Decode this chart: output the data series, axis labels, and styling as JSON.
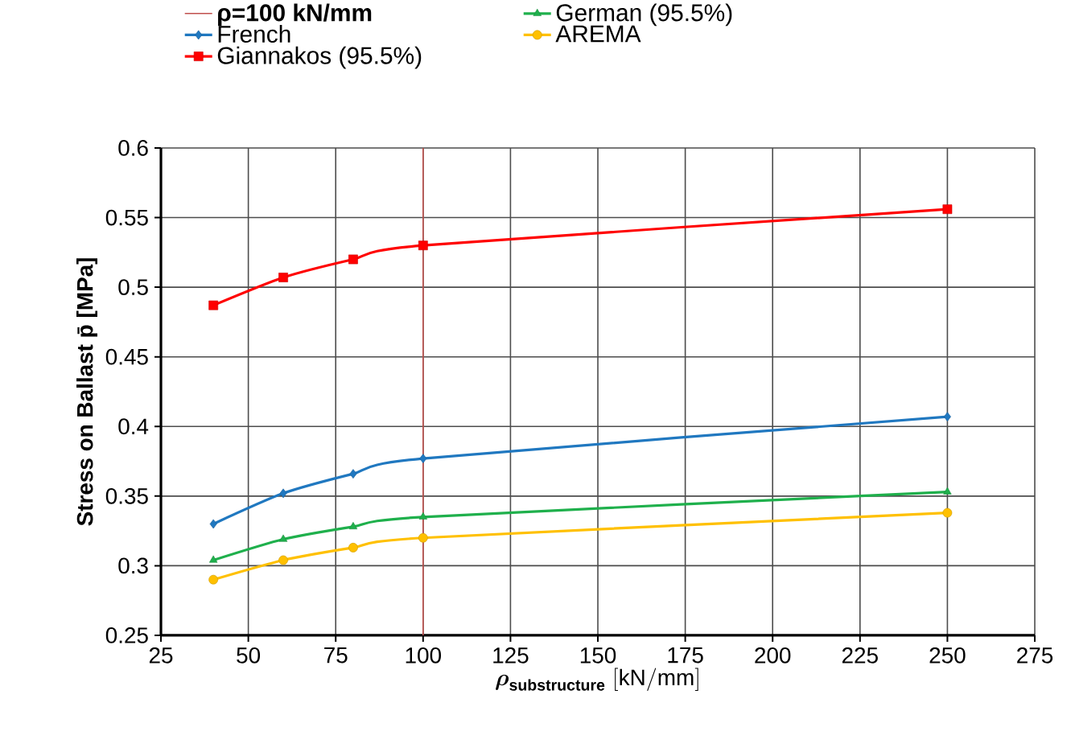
{
  "chart_data": {
    "type": "line",
    "xlabel": "\\boldsymbol{\\rho}_{\\mathbf{substructure}}\\;\\mathrm{[kN/mm]}",
    "ylabel": "Stress on Ballast p̄  [MPa]",
    "x": [
      40,
      60,
      80,
      100,
      250
    ],
    "series": [
      {
        "name": "German (95.5%)",
        "color": "#1fb04c",
        "marker": "triangle",
        "values": [
          0.304,
          0.319,
          0.328,
          0.335,
          0.353
        ]
      },
      {
        "name": "French",
        "color": "#2078c0",
        "marker": "diamond",
        "values": [
          0.33,
          0.352,
          0.366,
          0.377,
          0.407
        ]
      },
      {
        "name": "AREMA",
        "color": "#ffc000",
        "marker": "circle",
        "values": [
          0.29,
          0.304,
          0.313,
          0.32,
          0.338
        ]
      },
      {
        "name": "Giannakos (95.5%)",
        "color": "#ff0000",
        "marker": "square",
        "values": [
          0.487,
          0.507,
          0.52,
          0.53,
          0.556
        ]
      }
    ],
    "ref_lines": [
      {
        "axis": "x",
        "value": 100,
        "label": "**ρ=100 kN/mm**",
        "color": "#c0504d"
      }
    ],
    "xlim": [
      25,
      275
    ],
    "xticks": [
      25,
      50,
      75,
      100,
      125,
      150,
      175,
      200,
      225,
      250,
      275
    ],
    "ylim": [
      0.25,
      0.6
    ],
    "yticks": [
      0.25,
      0.3,
      0.35,
      0.4,
      0.45,
      0.5,
      0.55,
      0.6
    ],
    "grid": true,
    "legend": "top",
    "line_style": "solid"
  }
}
